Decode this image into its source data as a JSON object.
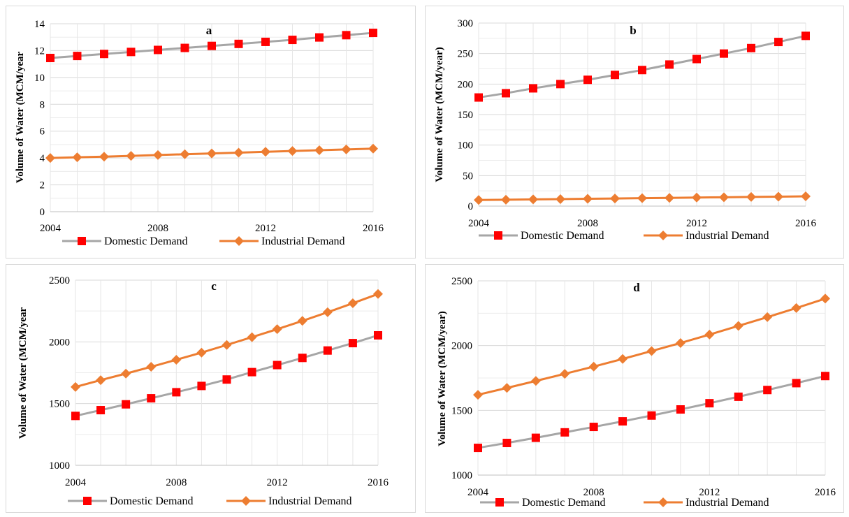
{
  "chart_data": [
    {
      "id": "a",
      "type": "line",
      "title": "a",
      "ylabel": "Volume of Water (MCM/year",
      "xlabel": "",
      "x": [
        2004,
        2005,
        2006,
        2007,
        2008,
        2009,
        2010,
        2011,
        2012,
        2013,
        2014,
        2015,
        2016
      ],
      "xticks": [
        2004,
        2008,
        2012,
        2016
      ],
      "ylim": [
        0,
        14
      ],
      "yticks": [
        0,
        2,
        4,
        6,
        8,
        10,
        12,
        14
      ],
      "grid": true,
      "legend": "bottom",
      "series": [
        {
          "name": "Domestic Demand",
          "color": "#a6a6a6",
          "marker": "square",
          "marker_color": "#ff0000",
          "values": [
            11.45,
            11.6,
            11.75,
            11.9,
            12.05,
            12.2,
            12.35,
            12.5,
            12.65,
            12.8,
            12.98,
            13.15,
            13.32
          ]
        },
        {
          "name": "Industrial Demand",
          "color": "#ed7d31",
          "marker": "diamond",
          "marker_color": "#ed7d31",
          "values": [
            4.0,
            4.05,
            4.1,
            4.16,
            4.22,
            4.28,
            4.34,
            4.4,
            4.46,
            4.52,
            4.58,
            4.64,
            4.7
          ]
        }
      ]
    },
    {
      "id": "b",
      "type": "line",
      "title": "b",
      "ylabel": "Volume of Water (MCM/year)",
      "xlabel": "",
      "x": [
        2004,
        2005,
        2006,
        2007,
        2008,
        2009,
        2010,
        2011,
        2012,
        2013,
        2014,
        2015,
        2016
      ],
      "xticks": [
        2004,
        2008,
        2012,
        2016
      ],
      "ylim": [
        0,
        300
      ],
      "yticks": [
        0,
        50,
        100,
        150,
        200,
        250,
        300
      ],
      "grid": true,
      "legend": "bottom",
      "series": [
        {
          "name": "Domestic Demand",
          "color": "#a6a6a6",
          "marker": "square",
          "marker_color": "#ff0000",
          "values": [
            178,
            185,
            193,
            200,
            207,
            215,
            223,
            232,
            241,
            250,
            259,
            269,
            279
          ]
        },
        {
          "name": "Industrial Demand",
          "color": "#ed7d31",
          "marker": "diamond",
          "marker_color": "#ed7d31",
          "values": [
            10,
            10.5,
            11,
            11.5,
            12,
            12.5,
            13,
            13.5,
            14,
            14.5,
            15,
            15.5,
            16
          ]
        }
      ]
    },
    {
      "id": "c",
      "type": "line",
      "title": "c",
      "ylabel": "Volume of Water (MCM/year",
      "xlabel": "",
      "x": [
        2004,
        2005,
        2006,
        2007,
        2008,
        2009,
        2010,
        2011,
        2012,
        2013,
        2014,
        2015,
        2016
      ],
      "xticks": [
        2004,
        2008,
        2012,
        2016
      ],
      "ylim": [
        1000,
        2500
      ],
      "yticks": [
        1000,
        1500,
        2000,
        2500
      ],
      "grid": true,
      "legend": "bottom",
      "series": [
        {
          "name": "Domestic Demand",
          "color": "#a6a6a6",
          "marker": "square",
          "marker_color": "#ff0000",
          "values": [
            1400,
            1447,
            1494,
            1543,
            1592,
            1643,
            1695,
            1755,
            1812,
            1870,
            1930,
            1990,
            2053
          ]
        },
        {
          "name": "Industrial Demand",
          "color": "#ed7d31",
          "marker": "diamond",
          "marker_color": "#ed7d31",
          "values": [
            1635,
            1690,
            1743,
            1798,
            1855,
            1913,
            1975,
            2038,
            2103,
            2170,
            2240,
            2313,
            2388
          ]
        }
      ]
    },
    {
      "id": "d",
      "type": "line",
      "title": "d",
      "ylabel": "Volume of Water (MCM/year)",
      "xlabel": "",
      "x": [
        2004,
        2005,
        2006,
        2007,
        2008,
        2009,
        2010,
        2011,
        2012,
        2013,
        2014,
        2015,
        2016
      ],
      "xticks": [
        2004,
        2008,
        2012,
        2016
      ],
      "ylim": [
        1000,
        2500
      ],
      "yticks": [
        1000,
        1500,
        2000,
        2500
      ],
      "grid": true,
      "legend": "bottom",
      "series": [
        {
          "name": "Domestic Demand",
          "color": "#a6a6a6",
          "marker": "square",
          "marker_color": "#ff0000",
          "values": [
            1210,
            1248,
            1288,
            1330,
            1372,
            1415,
            1460,
            1507,
            1555,
            1605,
            1657,
            1710,
            1765
          ]
        },
        {
          "name": "Industrial Demand",
          "color": "#ed7d31",
          "marker": "diamond",
          "marker_color": "#ed7d31",
          "values": [
            1620,
            1673,
            1727,
            1782,
            1838,
            1897,
            1958,
            2020,
            2085,
            2152,
            2220,
            2290,
            2363
          ]
        }
      ]
    }
  ]
}
